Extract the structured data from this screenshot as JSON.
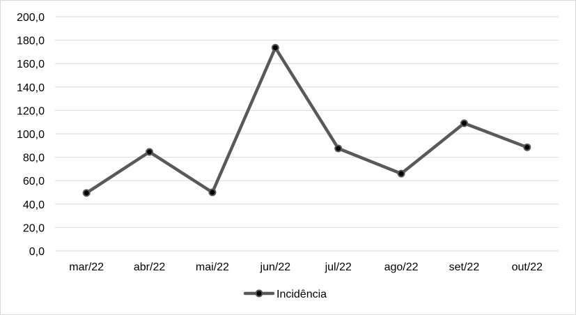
{
  "chart_data": {
    "type": "line",
    "categories": [
      "mar/22",
      "abr/22",
      "mai/22",
      "jun/22",
      "jul/22",
      "ago/22",
      "set/22",
      "out/22"
    ],
    "series": [
      {
        "name": "Incidência",
        "values": [
          49.5,
          84.5,
          50.0,
          173.5,
          87.5,
          66.0,
          109.0,
          88.5
        ],
        "color": "#595959"
      }
    ],
    "title": "",
    "xlabel": "",
    "ylabel": "",
    "ylim": [
      0,
      200
    ],
    "yticks": [
      "0,0",
      "20,0",
      "40,0",
      "60,0",
      "80,0",
      "100,0",
      "120,0",
      "140,0",
      "160,0",
      "180,0",
      "200,0"
    ],
    "grid": true,
    "legend": "bottom-center",
    "colors": {
      "grid": "#d9d9d9",
      "marker_fill": "#000000",
      "line": "#595959"
    }
  }
}
